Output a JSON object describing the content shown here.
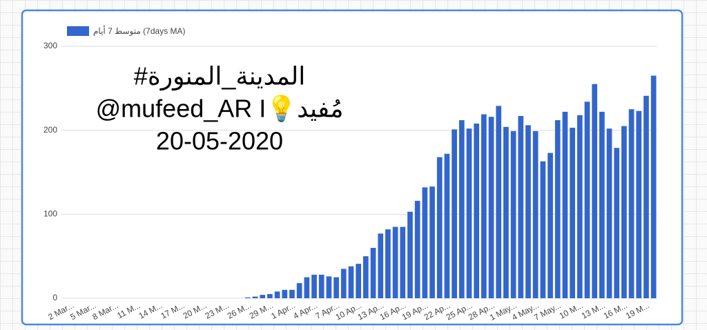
{
  "chart_data": {
    "type": "bar",
    "legend": "متوسط 7 أيام (7days MA)",
    "annotations": [
      "#المدينة_المنورة",
      "@mufeed_AR I💡مُفيد",
      "20-05-2020"
    ],
    "color": "#3366cc",
    "categories": [
      "2 Mar...",
      null,
      null,
      "5 Mar...",
      null,
      null,
      "8 Mar...",
      null,
      null,
      "11 M...",
      null,
      null,
      "14 M...",
      null,
      null,
      "17 M...",
      null,
      null,
      "20 M...",
      null,
      null,
      "23 M...",
      null,
      null,
      "26 M...",
      null,
      null,
      "29 M...",
      null,
      null,
      "1 Apr...",
      null,
      null,
      "4 Apr...",
      null,
      null,
      "7 Apr...",
      null,
      null,
      "10 Ap...",
      null,
      null,
      "13 Ap...",
      null,
      null,
      "16 Ap...",
      null,
      null,
      "19 Ap...",
      null,
      null,
      "22 Ap...",
      null,
      null,
      "25 Ap...",
      null,
      null,
      "28 Ap...",
      null,
      null,
      "1 May...",
      null,
      null,
      "4 May...",
      null,
      null,
      "7 May...",
      null,
      null,
      "10 M...",
      null,
      null,
      "13 M...",
      null,
      null,
      "16 M...",
      null,
      null,
      "19 M...",
      null
    ],
    "values": [
      0,
      0,
      0,
      0,
      0,
      0,
      0,
      0,
      0,
      0,
      0,
      0,
      0,
      0,
      0,
      0,
      0,
      0,
      0,
      0,
      0,
      0,
      0,
      0,
      1,
      2,
      4,
      5,
      8,
      10,
      10,
      18,
      25,
      28,
      28,
      26,
      25,
      35,
      38,
      41,
      50,
      60,
      77,
      82,
      85,
      85,
      103,
      116,
      132,
      133,
      168,
      172,
      201,
      212,
      202,
      208,
      219,
      216,
      229,
      204,
      199,
      217,
      206,
      199,
      163,
      173,
      212,
      222,
      203,
      218,
      234,
      255,
      222,
      202,
      179,
      205,
      225,
      223,
      241,
      265
    ],
    "ylim": [
      0,
      300
    ],
    "yticks": [
      0,
      100,
      200,
      300
    ],
    "grid": true
  }
}
